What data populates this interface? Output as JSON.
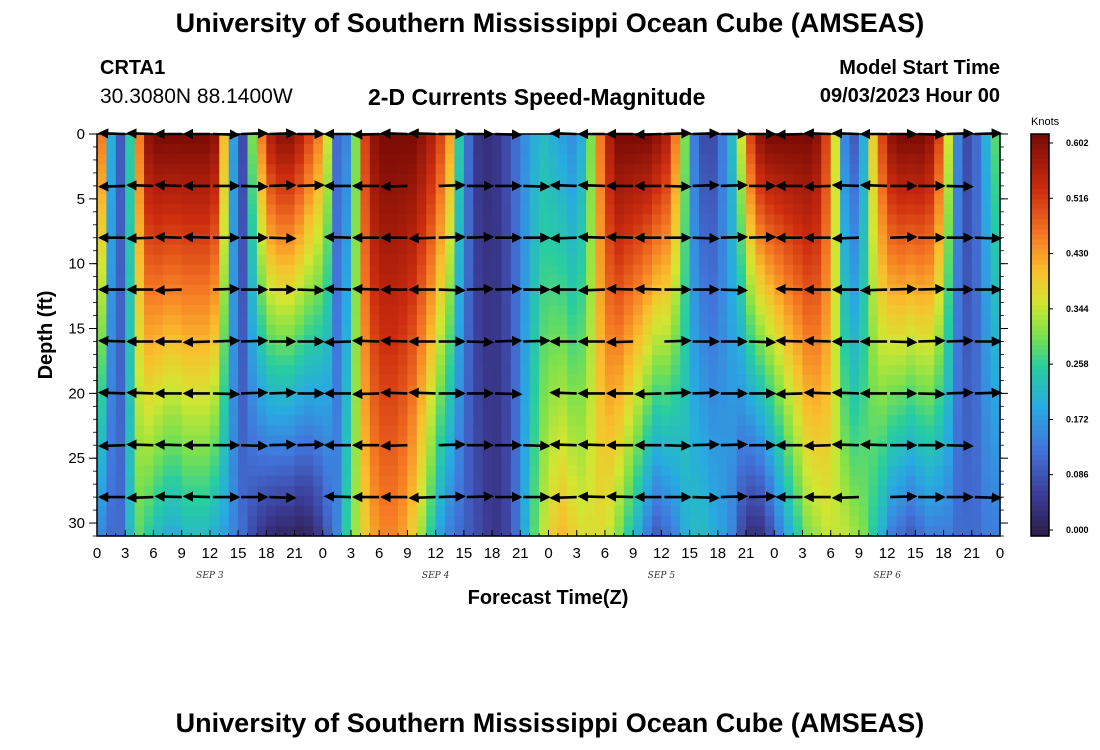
{
  "header": {
    "title": "University of Southern Mississippi Ocean Cube (AMSEAS)",
    "station_id": "CRTA1",
    "station_coords": "30.3080N  88.1400W",
    "plot_title": "2-D Currents Speed-Magnitude",
    "model_start_label": "Model Start Time",
    "model_start_value": "09/03/2023 Hour 00"
  },
  "footer": {
    "title": "University of Southern Mississippi Ocean Cube (AMSEAS)"
  },
  "chart_data": {
    "type": "heatmap",
    "title": "2-D Currents Speed-Magnitude",
    "xlabel": "Forecast Time(Z)",
    "ylabel": "Depth (ft)",
    "x_range_hours": [
      0,
      96
    ],
    "y_range_ft": [
      0,
      31
    ],
    "x_tick_hours": [
      0,
      3,
      6,
      9,
      12,
      15,
      18,
      21,
      24,
      27,
      30,
      33,
      36,
      39,
      42,
      45,
      48,
      51,
      54,
      57,
      60,
      63,
      66,
      69,
      72,
      75,
      78,
      81,
      84,
      87,
      90,
      93,
      96
    ],
    "x_tick_labels": [
      "0",
      "3",
      "6",
      "9",
      "12",
      "15",
      "18",
      "21",
      "0",
      "3",
      "6",
      "9",
      "12",
      "15",
      "18",
      "21",
      "0",
      "3",
      "6",
      "9",
      "12",
      "15",
      "18",
      "21",
      "0",
      "3",
      "6",
      "9",
      "12",
      "15",
      "18",
      "21",
      "0"
    ],
    "y_ticks": [
      0,
      5,
      10,
      15,
      20,
      25,
      30
    ],
    "date_labels": [
      {
        "hour": 12,
        "text": "SEP 3"
      },
      {
        "hour": 36,
        "text": "SEP 4"
      },
      {
        "hour": 60,
        "text": "SEP 5"
      },
      {
        "hour": 84,
        "text": "SEP 6"
      }
    ],
    "colorbar": {
      "unit": "Knots",
      "ticks": [
        0.0,
        0.086,
        0.172,
        0.258,
        0.344,
        0.43,
        0.516,
        0.602
      ],
      "tick_labels": [
        "0.000",
        "0.086",
        "0.172",
        "0.258",
        "0.344",
        "0.430",
        "0.516",
        "0.602"
      ],
      "min": 0.0,
      "max": 0.602
    },
    "speed_profile": {
      "hours": [
        0,
        1,
        2,
        3,
        4,
        5,
        6,
        7,
        8,
        9,
        10,
        11,
        12,
        13,
        14,
        15,
        16,
        17,
        18,
        19,
        20,
        21,
        22,
        23,
        24,
        25,
        26,
        27,
        28,
        29,
        30,
        31,
        32,
        33,
        34,
        35,
        36,
        37,
        38,
        39,
        40,
        41,
        42,
        43,
        44,
        45,
        46,
        47,
        48,
        49,
        50,
        51,
        52,
        53,
        54,
        55,
        56,
        57,
        58,
        59,
        60,
        61,
        62,
        63,
        64,
        65,
        66,
        67,
        68,
        69,
        70,
        71,
        72,
        73,
        74,
        75,
        76,
        77,
        78,
        79,
        80,
        81,
        82,
        83,
        84,
        85,
        86,
        87,
        88,
        89,
        90,
        91,
        92,
        93,
        94,
        95,
        96
      ],
      "surface_knots": [
        0.45,
        0.2,
        0.1,
        0.25,
        0.45,
        0.58,
        0.6,
        0.6,
        0.6,
        0.6,
        0.6,
        0.6,
        0.58,
        0.4,
        0.18,
        0.08,
        0.3,
        0.45,
        0.55,
        0.58,
        0.58,
        0.55,
        0.5,
        0.45,
        0.35,
        0.12,
        0.15,
        0.3,
        0.5,
        0.58,
        0.6,
        0.6,
        0.6,
        0.6,
        0.58,
        0.55,
        0.5,
        0.42,
        0.25,
        0.12,
        0.05,
        0.04,
        0.05,
        0.08,
        0.12,
        0.16,
        0.2,
        0.22,
        0.2,
        0.18,
        0.16,
        0.2,
        0.3,
        0.45,
        0.55,
        0.6,
        0.6,
        0.6,
        0.6,
        0.58,
        0.55,
        0.45,
        0.3,
        0.14,
        0.08,
        0.08,
        0.14,
        0.22,
        0.35,
        0.5,
        0.58,
        0.6,
        0.6,
        0.6,
        0.6,
        0.6,
        0.58,
        0.5,
        0.35,
        0.15,
        0.1,
        0.2,
        0.38,
        0.5,
        0.58,
        0.6,
        0.6,
        0.6,
        0.58,
        0.5,
        0.35,
        0.15,
        0.08,
        0.12,
        0.2,
        0.28,
        0.3
      ],
      "bottom_knots": [
        0.15,
        0.12,
        0.12,
        0.22,
        0.28,
        0.25,
        0.22,
        0.2,
        0.2,
        0.22,
        0.22,
        0.22,
        0.2,
        0.18,
        0.15,
        0.12,
        0.08,
        0.05,
        0.03,
        0.02,
        0.02,
        0.01,
        0.02,
        0.05,
        0.1,
        0.15,
        0.25,
        0.32,
        0.38,
        0.42,
        0.44,
        0.44,
        0.42,
        0.38,
        0.32,
        0.25,
        0.18,
        0.14,
        0.12,
        0.1,
        0.08,
        0.06,
        0.05,
        0.07,
        0.12,
        0.2,
        0.28,
        0.34,
        0.38,
        0.4,
        0.38,
        0.36,
        0.36,
        0.36,
        0.34,
        0.3,
        0.25,
        0.2,
        0.14,
        0.1,
        0.12,
        0.15,
        0.2,
        0.22,
        0.22,
        0.2,
        0.18,
        0.15,
        0.08,
        0.04,
        0.04,
        0.08,
        0.14,
        0.2,
        0.25,
        0.3,
        0.32,
        0.34,
        0.34,
        0.34,
        0.32,
        0.3,
        0.25,
        0.2,
        0.14,
        0.12,
        0.1,
        0.12,
        0.14,
        0.14,
        0.14,
        0.12,
        0.12,
        0.12,
        0.14,
        0.14,
        0.14
      ]
    },
    "vector_depths_ft": [
      0,
      4,
      8,
      12,
      16,
      20,
      24,
      28
    ],
    "vector_hours": [
      0,
      3,
      6,
      9,
      12,
      15,
      18,
      21,
      24,
      27,
      30,
      33,
      36,
      39,
      42,
      45,
      48,
      51,
      54,
      57,
      60,
      63,
      66,
      69,
      72,
      75,
      78,
      81,
      84,
      87,
      90,
      93,
      96
    ]
  }
}
